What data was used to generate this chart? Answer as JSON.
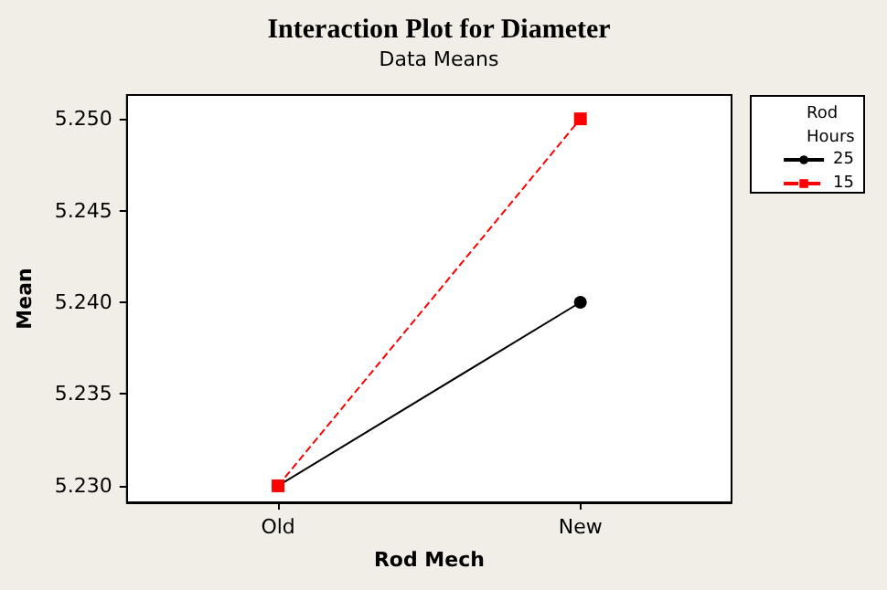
{
  "chart_data": {
    "type": "line",
    "title": "Interaction Plot for Diameter",
    "subtitle": "Data Means",
    "xlabel": "Rod Mech",
    "ylabel": "Mean",
    "legend_title": "Rod Hours",
    "categories": [
      "Old",
      "New"
    ],
    "series": [
      {
        "name": "25",
        "color": "#000000",
        "values": [
          5.23,
          5.24
        ],
        "marker": "circle",
        "line_style": "solid"
      },
      {
        "name": "15",
        "color": "#ff0000",
        "values": [
          5.23,
          5.25
        ],
        "marker": "square",
        "line_style": "dashed"
      }
    ],
    "ylim": [
      5.2291,
      5.2513
    ],
    "yticks": [
      {
        "value": 5.23,
        "label": "5.230"
      },
      {
        "value": 5.235,
        "label": "5.235"
      },
      {
        "value": 5.24,
        "label": "5.240"
      },
      {
        "value": 5.245,
        "label": "5.245"
      },
      {
        "value": 5.25,
        "label": "5.250"
      }
    ],
    "grid": false,
    "legend": "right"
  }
}
